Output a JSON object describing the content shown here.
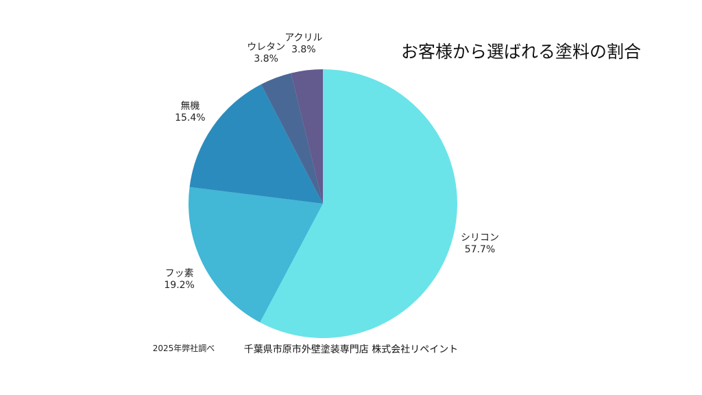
{
  "chart_data": {
    "type": "pie",
    "title": "お客様から選ばれる塗料の割合",
    "slices": [
      {
        "name": "シリコン",
        "value": 57.7,
        "label": "57.7%",
        "color": "#6ae4e9"
      },
      {
        "name": "フッ素",
        "value": 19.2,
        "label": "19.2%",
        "color": "#42b7d6"
      },
      {
        "name": "無機",
        "value": 15.4,
        "label": "15.4%",
        "color": "#2c8bbd"
      },
      {
        "name": "ウレタン",
        "value": 3.8,
        "label": "3.8%",
        "color": "#4a6896"
      },
      {
        "name": "アクリル",
        "value": 3.8,
        "label": "3.8%",
        "color": "#635a8e"
      }
    ]
  },
  "footer": {
    "source": "2025年弊社調べ",
    "company": "千葉県市原市外壁塗装専門店 株式会社リペイント"
  }
}
